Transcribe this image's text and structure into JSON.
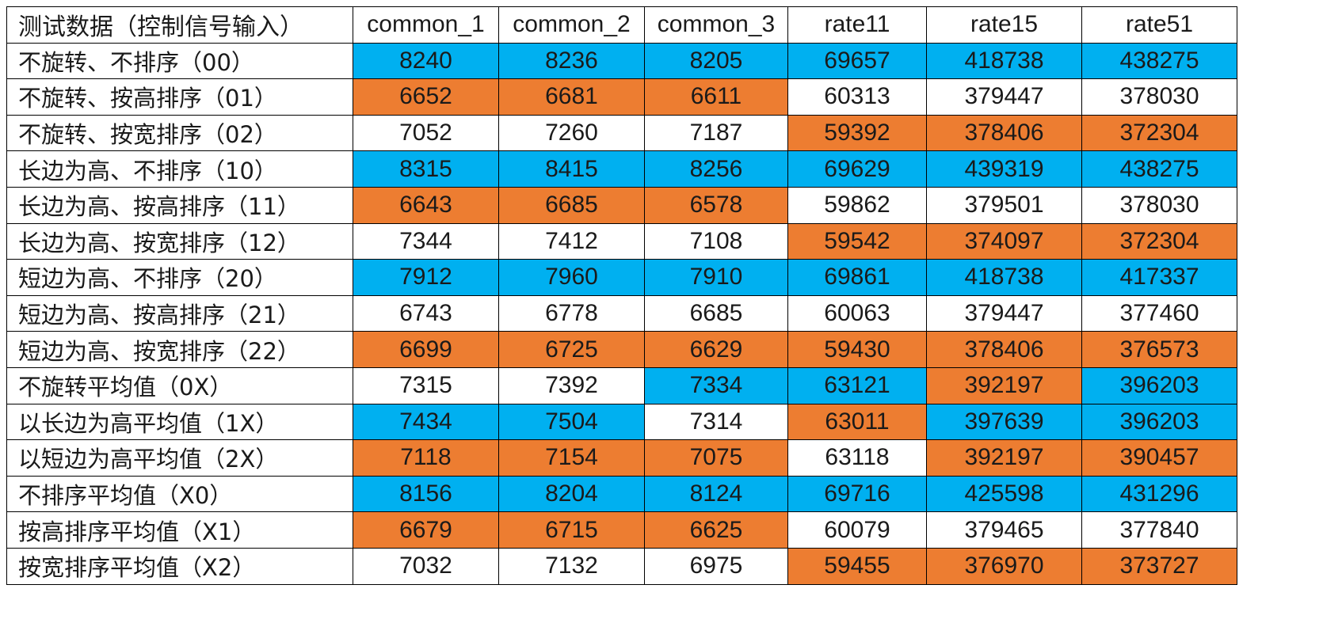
{
  "palette": {
    "blue": "#00b0f0",
    "orange": "#ed7d31",
    "white": "#ffffff"
  },
  "table": {
    "corner_label": "测试数据（控制信号输入）",
    "columns": [
      "common_1",
      "common_2",
      "common_3",
      "rate11",
      "rate15",
      "rate51"
    ],
    "rows": [
      {
        "label": "不旋转、不排序（00）",
        "cells": [
          {
            "value": "8240",
            "color": "blue"
          },
          {
            "value": "8236",
            "color": "blue"
          },
          {
            "value": "8205",
            "color": "blue"
          },
          {
            "value": "69657",
            "color": "blue"
          },
          {
            "value": "418738",
            "color": "blue"
          },
          {
            "value": "438275",
            "color": "blue"
          }
        ]
      },
      {
        "label": "不旋转、按高排序（01）",
        "cells": [
          {
            "value": "6652",
            "color": "orange"
          },
          {
            "value": "6681",
            "color": "orange"
          },
          {
            "value": "6611",
            "color": "orange"
          },
          {
            "value": "60313",
            "color": "white"
          },
          {
            "value": "379447",
            "color": "white"
          },
          {
            "value": "378030",
            "color": "white"
          }
        ]
      },
      {
        "label": "不旋转、按宽排序（02）",
        "cells": [
          {
            "value": "7052",
            "color": "white"
          },
          {
            "value": "7260",
            "color": "white"
          },
          {
            "value": "7187",
            "color": "white"
          },
          {
            "value": "59392",
            "color": "orange"
          },
          {
            "value": "378406",
            "color": "orange"
          },
          {
            "value": "372304",
            "color": "orange"
          }
        ]
      },
      {
        "label": "长边为高、不排序（10）",
        "cells": [
          {
            "value": "8315",
            "color": "blue"
          },
          {
            "value": "8415",
            "color": "blue"
          },
          {
            "value": "8256",
            "color": "blue"
          },
          {
            "value": "69629",
            "color": "blue"
          },
          {
            "value": "439319",
            "color": "blue"
          },
          {
            "value": "438275",
            "color": "blue"
          }
        ]
      },
      {
        "label": "长边为高、按高排序（11）",
        "cells": [
          {
            "value": "6643",
            "color": "orange"
          },
          {
            "value": "6685",
            "color": "orange"
          },
          {
            "value": "6578",
            "color": "orange"
          },
          {
            "value": "59862",
            "color": "white"
          },
          {
            "value": "379501",
            "color": "white"
          },
          {
            "value": "378030",
            "color": "white"
          }
        ]
      },
      {
        "label": "长边为高、按宽排序（12）",
        "cells": [
          {
            "value": "7344",
            "color": "white"
          },
          {
            "value": "7412",
            "color": "white"
          },
          {
            "value": "7108",
            "color": "white"
          },
          {
            "value": "59542",
            "color": "orange"
          },
          {
            "value": "374097",
            "color": "orange"
          },
          {
            "value": "372304",
            "color": "orange"
          }
        ]
      },
      {
        "label": "短边为高、不排序（20）",
        "cells": [
          {
            "value": "7912",
            "color": "blue"
          },
          {
            "value": "7960",
            "color": "blue"
          },
          {
            "value": "7910",
            "color": "blue"
          },
          {
            "value": "69861",
            "color": "blue"
          },
          {
            "value": "418738",
            "color": "blue"
          },
          {
            "value": "417337",
            "color": "blue"
          }
        ]
      },
      {
        "label": "短边为高、按高排序（21）",
        "cells": [
          {
            "value": "6743",
            "color": "white"
          },
          {
            "value": "6778",
            "color": "white"
          },
          {
            "value": "6685",
            "color": "white"
          },
          {
            "value": "60063",
            "color": "white"
          },
          {
            "value": "379447",
            "color": "white"
          },
          {
            "value": "377460",
            "color": "white"
          }
        ]
      },
      {
        "label": "短边为高、按宽排序（22）",
        "cells": [
          {
            "value": "6699",
            "color": "orange"
          },
          {
            "value": "6725",
            "color": "orange"
          },
          {
            "value": "6629",
            "color": "orange"
          },
          {
            "value": "59430",
            "color": "orange"
          },
          {
            "value": "378406",
            "color": "orange"
          },
          {
            "value": "376573",
            "color": "orange"
          }
        ]
      },
      {
        "label": "不旋转平均值（0X）",
        "cells": [
          {
            "value": "7315",
            "color": "white"
          },
          {
            "value": "7392",
            "color": "white"
          },
          {
            "value": "7334",
            "color": "blue"
          },
          {
            "value": "63121",
            "color": "blue"
          },
          {
            "value": "392197",
            "color": "orange"
          },
          {
            "value": "396203",
            "color": "blue"
          }
        ]
      },
      {
        "label": "以长边为高平均值（1X）",
        "cells": [
          {
            "value": "7434",
            "color": "blue"
          },
          {
            "value": "7504",
            "color": "blue"
          },
          {
            "value": "7314",
            "color": "white"
          },
          {
            "value": "63011",
            "color": "orange"
          },
          {
            "value": "397639",
            "color": "blue"
          },
          {
            "value": "396203",
            "color": "blue"
          }
        ]
      },
      {
        "label": "以短边为高平均值（2X）",
        "cells": [
          {
            "value": "7118",
            "color": "orange"
          },
          {
            "value": "7154",
            "color": "orange"
          },
          {
            "value": "7075",
            "color": "orange"
          },
          {
            "value": "63118",
            "color": "white"
          },
          {
            "value": "392197",
            "color": "orange"
          },
          {
            "value": "390457",
            "color": "orange"
          }
        ]
      },
      {
        "label": "不排序平均值（X0）",
        "cells": [
          {
            "value": "8156",
            "color": "blue"
          },
          {
            "value": "8204",
            "color": "blue"
          },
          {
            "value": "8124",
            "color": "blue"
          },
          {
            "value": "69716",
            "color": "blue"
          },
          {
            "value": "425598",
            "color": "blue"
          },
          {
            "value": "431296",
            "color": "blue"
          }
        ]
      },
      {
        "label": "按高排序平均值（X1）",
        "cells": [
          {
            "value": "6679",
            "color": "orange"
          },
          {
            "value": "6715",
            "color": "orange"
          },
          {
            "value": "6625",
            "color": "orange"
          },
          {
            "value": "60079",
            "color": "white"
          },
          {
            "value": "379465",
            "color": "white"
          },
          {
            "value": "377840",
            "color": "white"
          }
        ]
      },
      {
        "label": "按宽排序平均值（X2）",
        "cells": [
          {
            "value": "7032",
            "color": "white"
          },
          {
            "value": "7132",
            "color": "white"
          },
          {
            "value": "6975",
            "color": "white"
          },
          {
            "value": "59455",
            "color": "orange"
          },
          {
            "value": "376970",
            "color": "orange"
          },
          {
            "value": "373727",
            "color": "orange"
          }
        ]
      }
    ]
  }
}
